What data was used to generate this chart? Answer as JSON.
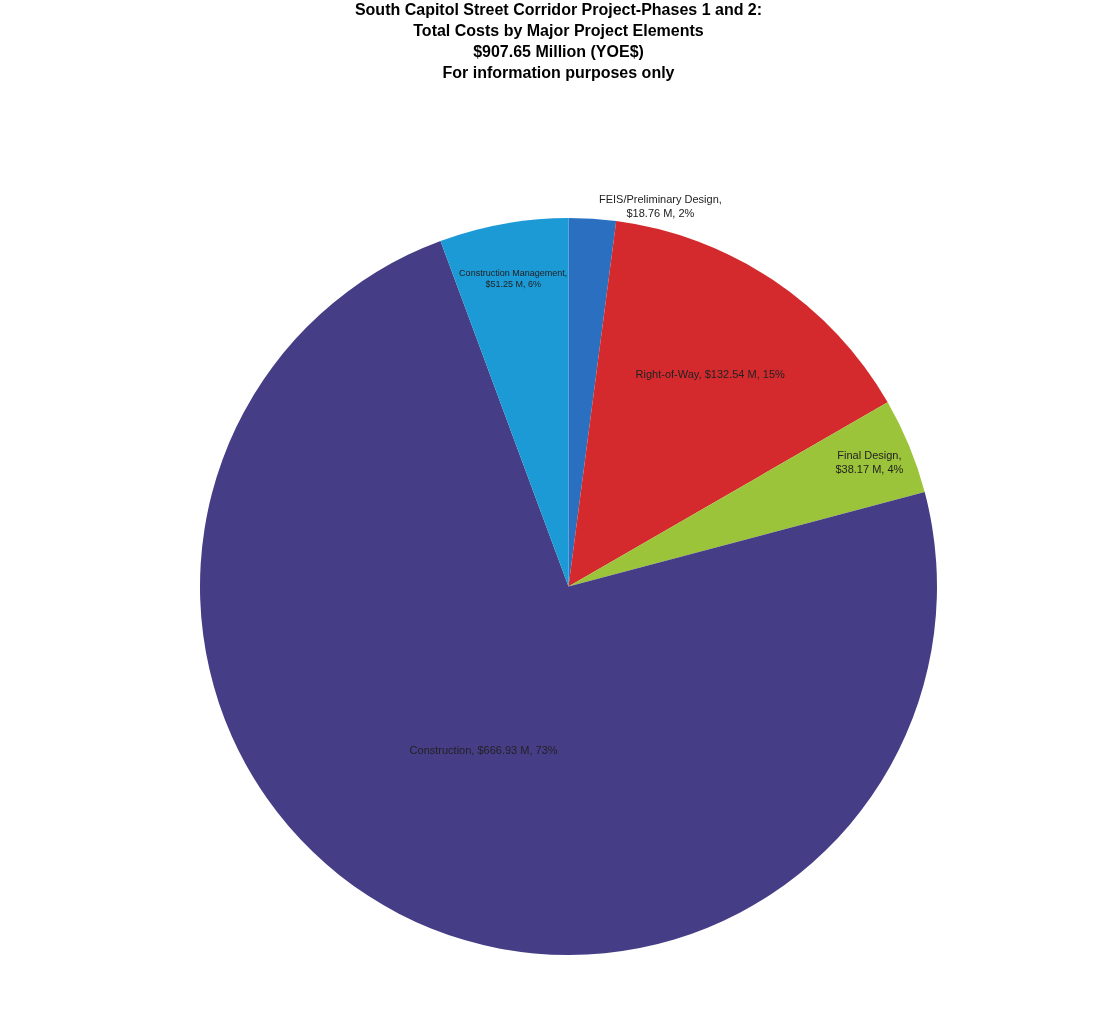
{
  "chart_data": {
    "type": "pie",
    "title": "South Capitol Street Corridor Project-Phases 1 and 2:\nTotal Costs by Major Project Elements\n$907.65 Million (YOE$)\nFor information purposes only",
    "categories": [
      "FEIS/Preliminary Design",
      "Right-of-Way",
      "Final Design",
      "Construction",
      "Construction Management"
    ],
    "values": [
      18.76,
      132.54,
      38.17,
      666.93,
      51.25
    ],
    "value_labels": [
      ",\n$18.76 M, 2%",
      ", $132.54 M, 15%",
      ",\n$38.17 M, 4%",
      ", $666.93 M, 73%",
      ",\n$51.25 M, 6%"
    ],
    "colors": [
      "#2a6fc0",
      "#d42a2e",
      "#9cc43a",
      "#453e86",
      "#1c9ad6"
    ],
    "legend": false
  }
}
